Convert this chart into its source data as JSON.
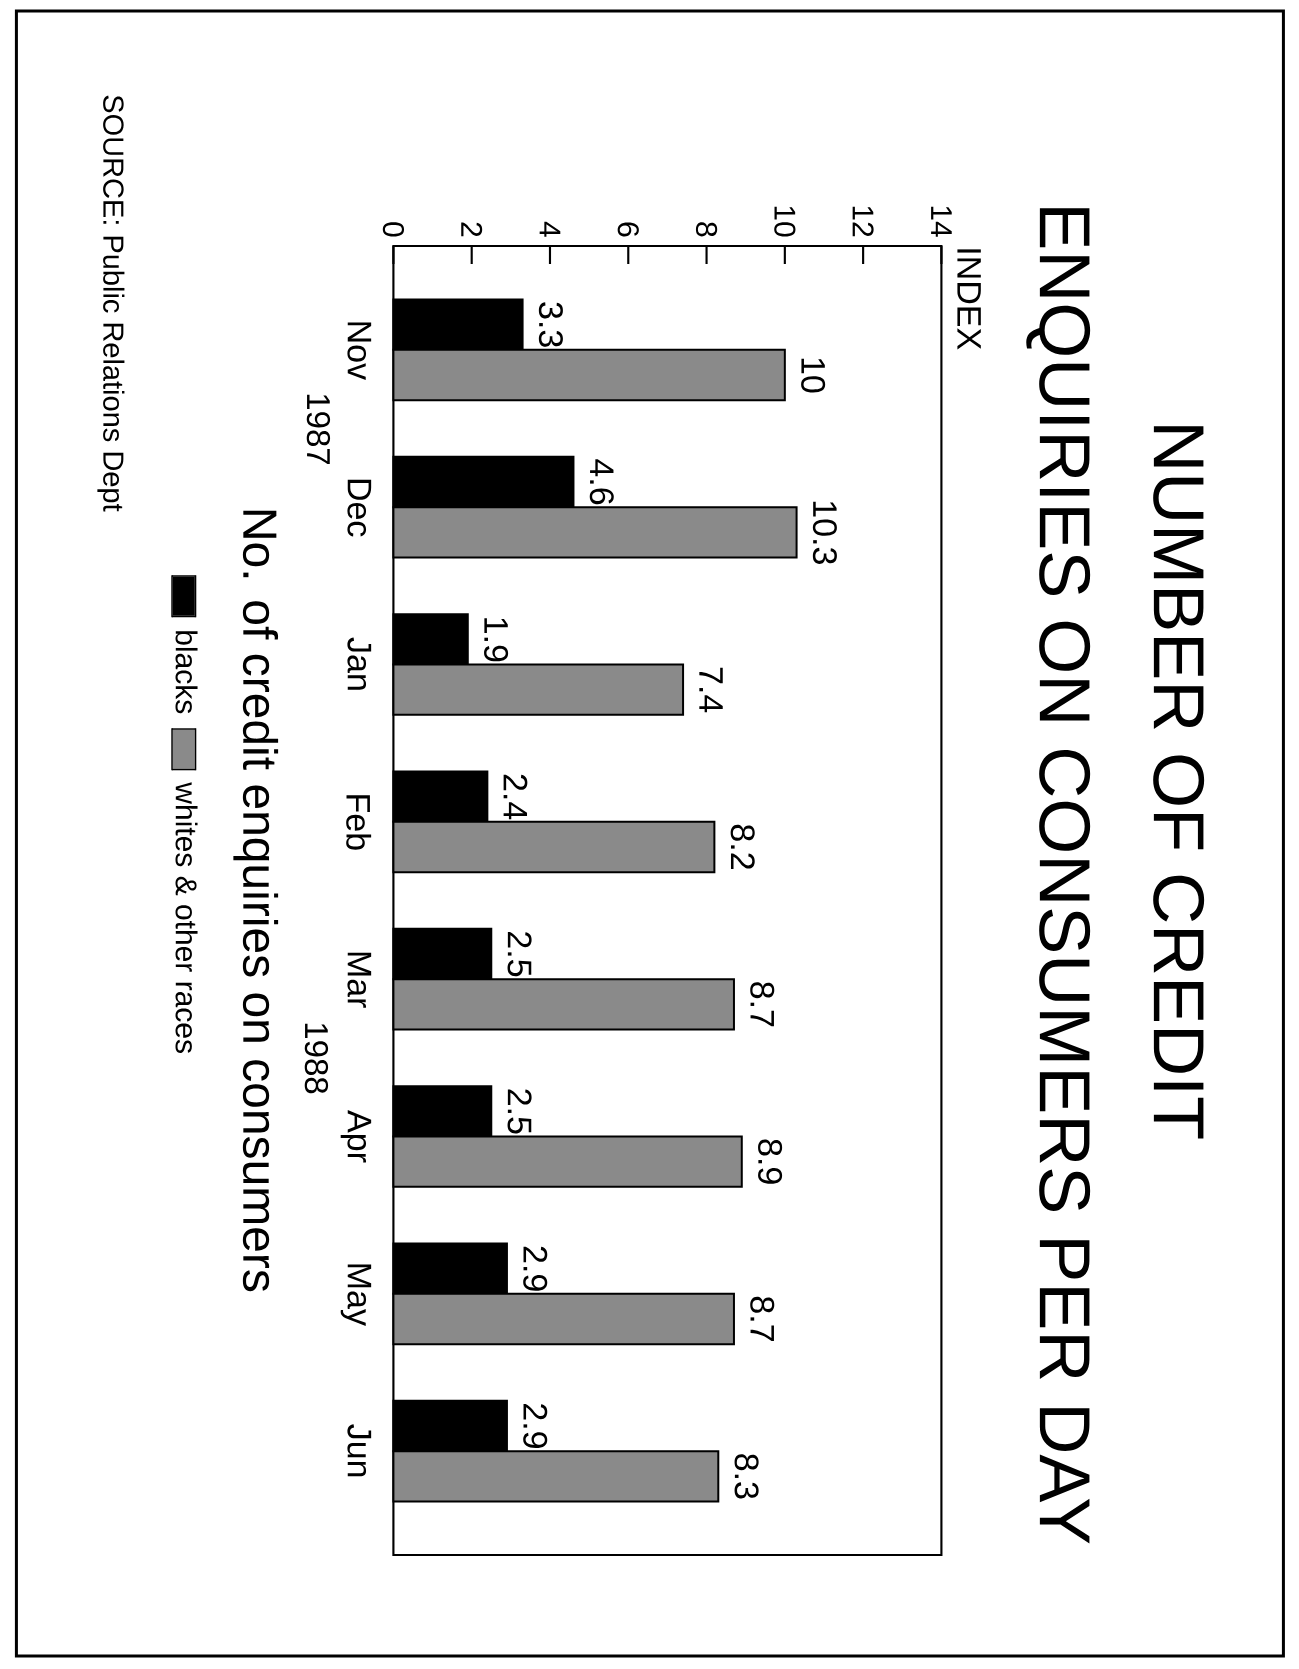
{
  "chart_data": {
    "type": "bar",
    "orientation": "horizontal",
    "title": "NUMBER OF CREDIT ENQUIRIES ON CONSUMERS PER DAY",
    "ylabel": "No. of credit enquiries on consumers",
    "categories": [
      "Nov",
      "Dec",
      "Jan",
      "Feb",
      "Mar",
      "Apr",
      "May",
      "Jun"
    ],
    "series": [
      {
        "name": "blacks",
        "color": "#000000",
        "values": [
          3.3,
          4.6,
          1.9,
          2.4,
          2.5,
          2.5,
          2.9,
          2.9
        ]
      },
      {
        "name": "whites & other races",
        "color": "#8a8a8a",
        "values": [
          10,
          10.3,
          7.4,
          8.2,
          8.7,
          8.9,
          8.7,
          8.3
        ]
      }
    ],
    "xlim": [
      0,
      14
    ],
    "xticks": [
      0,
      2,
      4,
      6,
      8,
      10,
      12,
      14
    ],
    "data_labels": true,
    "legend": "left",
    "annotations": [
      "INDEX",
      "1987",
      "1988",
      "SOURCE: Public Relations Dept"
    ]
  }
}
